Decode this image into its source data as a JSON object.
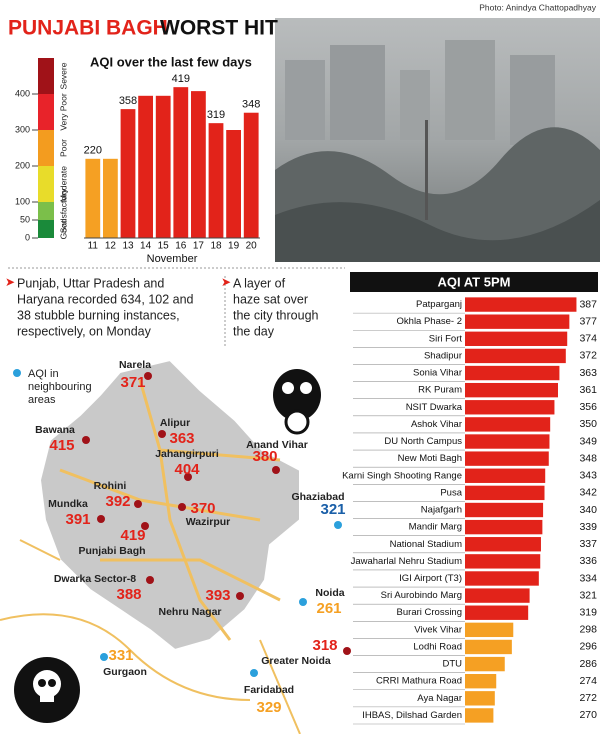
{
  "header": {
    "title_red": "PUNJABI BAGH",
    "title_black": "WORST HIT",
    "photo_credit": "Photo: Anindya Chattopadhyay"
  },
  "chart_data": [
    {
      "type": "bar",
      "title": "AQI over the last few days",
      "x_label": "November",
      "categories": [
        "11",
        "12",
        "13",
        "14",
        "15",
        "16",
        "17",
        "18",
        "19",
        "20"
      ],
      "values": [
        220,
        220,
        358,
        395,
        395,
        419,
        408,
        319,
        300,
        348
      ],
      "value_labels": [
        "220",
        null,
        "358",
        null,
        null,
        "419",
        null,
        "319",
        null,
        "348"
      ],
      "colors": [
        "#f5a023",
        "#f5a023",
        "#e2231a",
        "#e2231a",
        "#e2231a",
        "#e2231a",
        "#e2231a",
        "#e2231a",
        "#e2231a",
        "#e2231a"
      ],
      "ylim": [
        0,
        500
      ],
      "yticks": [
        0,
        50,
        100,
        200,
        300,
        400
      ],
      "bands": [
        {
          "label": "Good",
          "from": 0,
          "to": 50,
          "color": "#1a8a3a"
        },
        {
          "label": "Satisfactory",
          "from": 50,
          "to": 100,
          "color": "#7bbf4a"
        },
        {
          "label": "Moderate",
          "from": 100,
          "to": 200,
          "color": "#e8dc2a"
        },
        {
          "label": "Poor",
          "from": 200,
          "to": 300,
          "color": "#f39c1f"
        },
        {
          "label": "Very Poor",
          "from": 300,
          "to": 400,
          "color": "#e8232a"
        },
        {
          "label": "Severe",
          "from": 400,
          "to": 500,
          "color": "#a01218"
        }
      ]
    },
    {
      "type": "barh",
      "title": "AQI AT 5PM",
      "categories": [
        "Patparganj",
        "Okhla Phase- 2",
        "Siri Fort",
        "Shadipur",
        "Sonia Vihar",
        "RK Puram",
        "NSIT Dwarka",
        "Ashok Vihar",
        "DU North Campus",
        "New Moti Bagh",
        "Karni Singh Shooting Range",
        "Pusa",
        "Najafgarh",
        "Mandir Marg",
        "National Stadium",
        "Jawaharlal Nehru Stadium",
        "IGI Airport (T3)",
        "Sri Aurobindo Marg",
        "Burari Crossing",
        "Vivek Vihar",
        "Lodhi Road",
        "DTU",
        "CRRI Mathura Road",
        "Aya Nagar",
        "IHBAS, Dilshad Garden"
      ],
      "values": [
        387,
        377,
        374,
        372,
        363,
        361,
        356,
        350,
        349,
        348,
        343,
        342,
        340,
        339,
        337,
        336,
        334,
        321,
        319,
        298,
        296,
        286,
        274,
        272,
        270
      ],
      "colors": [
        "#e2231a",
        "#e2231a",
        "#e2231a",
        "#e2231a",
        "#e2231a",
        "#e2231a",
        "#e2231a",
        "#e2231a",
        "#e2231a",
        "#e2231a",
        "#e2231a",
        "#e2231a",
        "#e2231a",
        "#e2231a",
        "#e2231a",
        "#e2231a",
        "#e2231a",
        "#e2231a",
        "#e2231a",
        "#f5a023",
        "#f5a023",
        "#f5a023",
        "#f5a023",
        "#f5a023",
        "#f5a023"
      ],
      "xlim": [
        230,
        392
      ]
    }
  ],
  "notes": [
    [
      "Punjab, Uttar Pradesh and",
      "Haryana recorded 634, 102 and",
      "38 stubble burning instances,",
      "respectively, on Monday"
    ],
    [
      "A layer of",
      "haze sat over",
      "the city through",
      "the day"
    ]
  ],
  "map": {
    "legend": [
      "AQI in",
      "neighbouring",
      "areas"
    ],
    "places": [
      {
        "name": "Narela",
        "value": "371",
        "color": "#e2231a"
      },
      {
        "name": "Alipur",
        "value": "363",
        "color": "#e2231a"
      },
      {
        "name": "Jahangirpuri",
        "value": "404",
        "color": "#e2231a"
      },
      {
        "name": "Bawana",
        "value": "415",
        "color": "#e2231a"
      },
      {
        "name": "Rohini",
        "value": "392",
        "color": "#e2231a"
      },
      {
        "name": "Mundka",
        "value": "391",
        "color": "#e2231a"
      },
      {
        "name": "Wazirpur",
        "value": "370",
        "color": "#e2231a"
      },
      {
        "name": "Punjabi Bagh",
        "value": "419",
        "color": "#e2231a"
      },
      {
        "name": "Dwarka Sector-8",
        "value": "388",
        "color": "#e2231a"
      },
      {
        "name": "Nehru Nagar",
        "value": "393",
        "color": "#e2231a"
      },
      {
        "name": "Anand Vihar",
        "value": "380",
        "color": "#e2231a"
      },
      {
        "name": "Ghaziabad",
        "value": "321",
        "color": "#1a5fa8"
      },
      {
        "name": "Noida",
        "value": "261",
        "color": "#f5a023"
      },
      {
        "name": "Greater Noida",
        "value": "318",
        "color": "#e2231a"
      },
      {
        "name": "Gurgaon",
        "value": "331",
        "color": "#f5a023"
      },
      {
        "name": "Faridabad",
        "value": "329",
        "color": "#f5a023"
      }
    ]
  }
}
